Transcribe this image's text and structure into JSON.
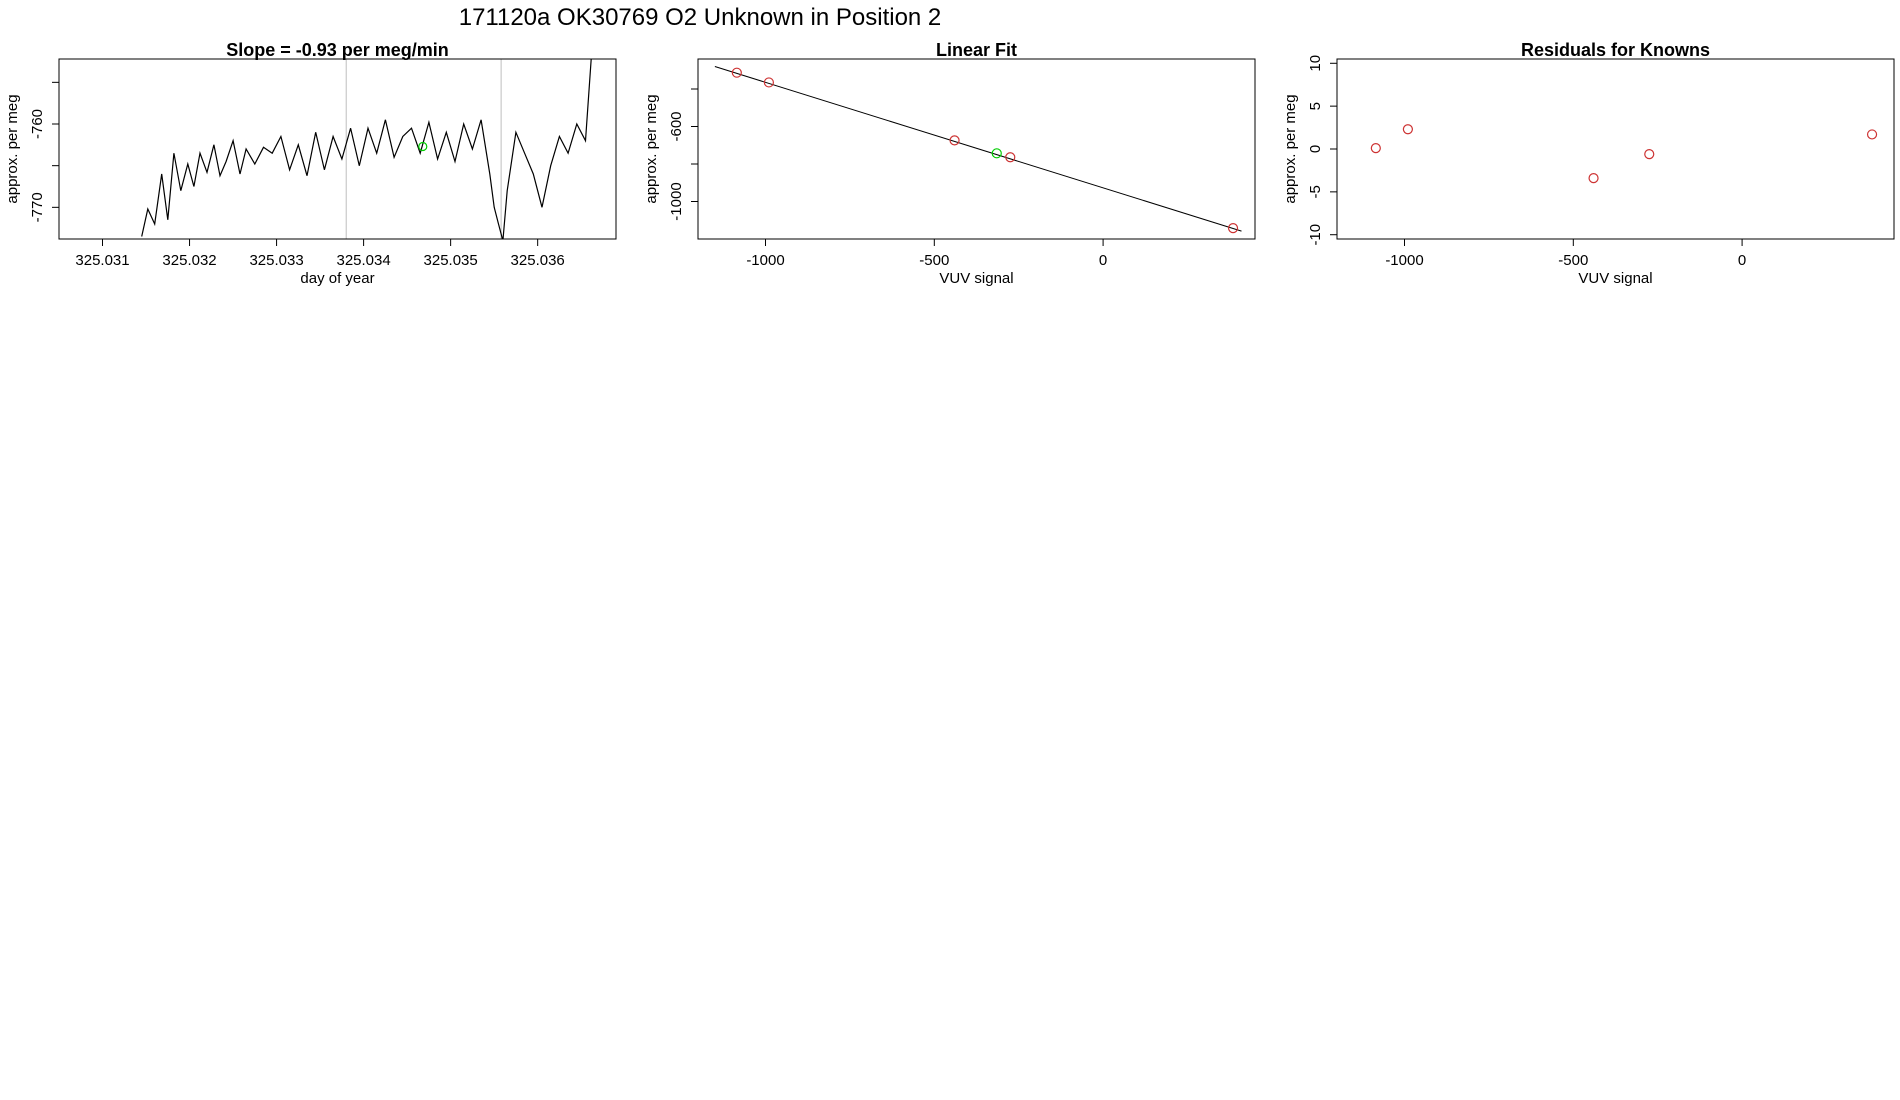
{
  "page_title": "171120a      OK30769   O2 Unknown in Position  2",
  "colors": {
    "line": "#000000",
    "known_point": "#cd3333",
    "unknown_point": "#00cc00",
    "marker_line": "#bebebe"
  },
  "chart_data": [
    {
      "type": "line",
      "title": "Slope =  -0.93  per meg/min",
      "xlabel": "day of year",
      "ylabel": "approx. per meg",
      "xlim": [
        325.0305,
        325.0369
      ],
      "ylim": [
        -773.8,
        -752.2
      ],
      "x_ticks": [
        325.031,
        325.032,
        325.033,
        325.034,
        325.035,
        325.036
      ],
      "x_tick_labels": [
        "325.031",
        "325.032",
        "325.033",
        "325.034",
        "325.035",
        "325.036"
      ],
      "y_ticks": [
        -770,
        -765,
        -760,
        -755
      ],
      "y_tick_labels": [
        "-770",
        "",
        "-760",
        ""
      ],
      "vertical_markers": [
        325.0338,
        325.03558
      ],
      "highlight_point": {
        "x": 325.03468,
        "y": -762.7
      },
      "series": [
        {
          "x": [
            325.03145,
            325.03152,
            325.0316,
            325.03168,
            325.03175,
            325.03182,
            325.0319,
            325.03198,
            325.03205,
            325.03212,
            325.0322,
            325.03228,
            325.03235,
            325.03242,
            325.0325,
            325.03258,
            325.03265,
            325.03275,
            325.03285,
            325.03295,
            325.03305,
            325.03315,
            325.03325,
            325.03335,
            325.03345,
            325.03355,
            325.03365,
            325.03375,
            325.03385,
            325.03395,
            325.03405,
            325.03415,
            325.03425,
            325.03435,
            325.03445,
            325.03455,
            325.03465,
            325.03475,
            325.03485,
            325.03495,
            325.03505,
            325.03515,
            325.03525,
            325.03535,
            325.03545,
            325.0355,
            325.03555,
            325.0356,
            325.03565,
            325.03575,
            325.03585,
            325.03595,
            325.03605,
            325.03615,
            325.03625,
            325.03635,
            325.03645,
            325.03655,
            325.03662
          ],
          "y": [
            -773.5,
            -770.2,
            -772,
            -766,
            -771.5,
            -763.5,
            -768,
            -764.8,
            -767.5,
            -763.5,
            -765.8,
            -762.5,
            -766.2,
            -764.5,
            -762,
            -766,
            -763,
            -764.8,
            -762.8,
            -763.5,
            -761.5,
            -765.5,
            -762.5,
            -766.2,
            -761,
            -765.5,
            -761.5,
            -764.2,
            -760.5,
            -765,
            -760.5,
            -763.5,
            -759.5,
            -764,
            -761.5,
            -760.5,
            -763.5,
            -759.8,
            -764.2,
            -761,
            -764.5,
            -760,
            -763,
            -759.5,
            -766,
            -770,
            -772,
            -774,
            -768,
            -761,
            -763.5,
            -766,
            -770,
            -765,
            -761.5,
            -763.5,
            -760,
            -762,
            -751.5
          ],
          "color": "#000000"
        }
      ]
    },
    {
      "type": "scatter",
      "title": "Linear Fit",
      "xlabel": "VUV signal",
      "ylabel": "approx. per meg",
      "xlim": [
        -1200,
        450
      ],
      "ylim": [
        -1200,
        -240
      ],
      "x_ticks": [
        -1000,
        -500,
        0
      ],
      "x_tick_labels": [
        "-1000",
        "-500",
        "0"
      ],
      "y_ticks": [
        -1000,
        -800,
        -600,
        -400
      ],
      "y_tick_labels": [
        "-1000",
        "",
        "-600",
        ""
      ],
      "fit_line": {
        "x": [
          -1150,
          410
        ],
        "y": [
          -280,
          -1158
        ]
      },
      "series": [
        {
          "name": "knowns",
          "x": [
            -1085,
            -990,
            -440,
            -275,
            385
          ],
          "y": [
            -313,
            -365,
            -674,
            -764,
            -1142
          ],
          "color": "#cd3333"
        },
        {
          "name": "unknown",
          "x": [
            -315
          ],
          "y": [
            -743
          ],
          "color": "#00cc00"
        }
      ]
    },
    {
      "type": "scatter",
      "title": "Residuals for Knowns",
      "xlabel": "VUV signal",
      "ylabel": "approx. per meg",
      "xlim": [
        -1200,
        450
      ],
      "ylim": [
        -10.5,
        10.5
      ],
      "x_ticks": [
        -1000,
        -500,
        0
      ],
      "x_tick_labels": [
        "-1000",
        "-500",
        "0"
      ],
      "y_ticks": [
        -10,
        -5,
        0,
        5,
        10
      ],
      "y_tick_labels": [
        "-10",
        "-5",
        "0",
        "5",
        "10"
      ],
      "series": [
        {
          "name": "knowns",
          "x": [
            -1085,
            -990,
            -440,
            -275,
            385
          ],
          "y": [
            0.1,
            2.3,
            -3.4,
            -0.6,
            1.7
          ],
          "color": "#cd3333"
        }
      ]
    }
  ]
}
